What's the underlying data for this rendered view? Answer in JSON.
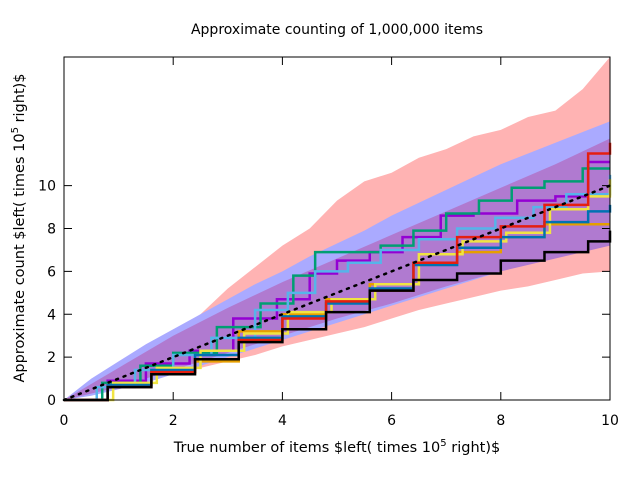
{
  "chart_data": {
    "type": "line",
    "title": "Approximate counting of 1,000,000 items",
    "xlabel_main": "True number of items $left( times 10",
    "xlabel_sup": "5",
    "xlabel_tail": " right)$",
    "ylabel_main": "Approximate count $left( times 10",
    "ylabel_sup": "5",
    "ylabel_tail": " right)$",
    "xlim": [
      0,
      10
    ],
    "ylim": [
      0,
      16
    ],
    "xticks": [
      "0",
      "2",
      "4",
      "6",
      "8",
      "10"
    ],
    "xtick_values": [
      0,
      2,
      4,
      6,
      8,
      10
    ],
    "yticks": [
      "0",
      "2",
      "4",
      "6",
      "8",
      "10"
    ],
    "ytick_values": [
      0,
      2,
      4,
      6,
      8,
      10
    ],
    "grid": false,
    "bands": [
      {
        "color": "#ffb3b3",
        "x": [
          0,
          0.5,
          1,
          1.5,
          2,
          2.5,
          3,
          3.5,
          4,
          4.5,
          5,
          5.5,
          6,
          6.5,
          7,
          7.5,
          8,
          8.5,
          9,
          9.5,
          10
        ],
        "lower": [
          0,
          0.3,
          0.6,
          0.9,
          1.2,
          1.5,
          1.8,
          2.1,
          2.5,
          2.8,
          3.1,
          3.4,
          3.8,
          4.2,
          4.5,
          4.8,
          5.1,
          5.3,
          5.6,
          5.9,
          6.0
        ],
        "upper": [
          0,
          0.9,
          1.7,
          2.4,
          3.2,
          4.0,
          5.2,
          6.2,
          7.2,
          8.0,
          9.3,
          10.2,
          10.6,
          11.3,
          11.7,
          12.3,
          12.6,
          13.2,
          13.5,
          14.5,
          16.0
        ]
      },
      {
        "color": "#aaaaff",
        "x": [
          0,
          0.5,
          1,
          1.5,
          2,
          2.5,
          3,
          3.5,
          4,
          4.5,
          5,
          5.5,
          6,
          6.5,
          7,
          7.5,
          8,
          8.5,
          9,
          9.5,
          10
        ],
        "lower": [
          0,
          0.2,
          0.5,
          0.8,
          1.2,
          1.6,
          2.0,
          2.4,
          2.8,
          3.2,
          3.6,
          4.0,
          4.4,
          4.8,
          5.2,
          5.6,
          6.0,
          6.4,
          6.8,
          7.2,
          7.6
        ],
        "upper": [
          0,
          1.0,
          1.8,
          2.6,
          3.3,
          4.0,
          4.7,
          5.4,
          6.0,
          6.7,
          7.3,
          7.9,
          8.6,
          9.2,
          9.8,
          10.4,
          11.0,
          11.5,
          12.0,
          12.5,
          13.0
        ]
      },
      {
        "color": "#b07ad0",
        "x": [
          0,
          1,
          2,
          3,
          4,
          5,
          6,
          7,
          8,
          9,
          10
        ],
        "lower": [
          0,
          0.6,
          1.4,
          2.2,
          3.0,
          3.8,
          4.5,
          5.3,
          6.0,
          6.6,
          7.2
        ],
        "upper": [
          0,
          1.5,
          3.0,
          4.3,
          5.5,
          6.6,
          7.7,
          8.8,
          9.9,
          11.0,
          12.2
        ]
      }
    ],
    "series": [
      {
        "color": "#9400d3",
        "x": [
          0,
          0.8,
          1.5,
          2.3,
          3.1,
          3.9,
          4.5,
          5.0,
          5.6,
          6.2,
          6.9,
          7.5,
          8.3,
          9.0,
          9.6,
          10
        ],
        "y": [
          0,
          0.9,
          1.7,
          2.3,
          3.8,
          4.7,
          5.9,
          6.5,
          6.9,
          7.6,
          8.6,
          8.7,
          9.3,
          9.5,
          11.1,
          11.1
        ]
      },
      {
        "color": "#009e73",
        "x": [
          0,
          0.7,
          1.4,
          2.0,
          2.8,
          3.6,
          4.2,
          4.6,
          5.2,
          5.8,
          6.4,
          7.0,
          7.6,
          8.2,
          8.8,
          9.5,
          10
        ],
        "y": [
          0,
          0.8,
          1.6,
          2.2,
          3.4,
          4.5,
          5.8,
          6.9,
          6.9,
          7.2,
          7.9,
          8.7,
          9.3,
          9.9,
          10.2,
          10.8,
          10.8
        ]
      },
      {
        "color": "#56b4e9",
        "x": [
          0,
          0.6,
          1.3,
          2.0,
          2.7,
          3.5,
          4.1,
          4.6,
          5.2,
          5.8,
          6.5,
          7.2,
          7.9,
          8.6,
          9.2,
          10
        ],
        "y": [
          0,
          0.6,
          1.4,
          2.1,
          2.9,
          4.2,
          5.0,
          6.0,
          6.4,
          7.0,
          7.5,
          8.0,
          8.5,
          9.0,
          9.6,
          10.5
        ]
      },
      {
        "color": "#e69f00",
        "x": [
          0,
          0.8,
          1.6,
          2.4,
          3.2,
          4.0,
          4.8,
          5.6,
          6.4,
          7.2,
          8.0,
          8.8,
          9.6,
          10
        ],
        "y": [
          0,
          0.7,
          1.3,
          1.8,
          3.2,
          4.0,
          4.7,
          5.4,
          6.4,
          6.9,
          7.6,
          8.2,
          8.2,
          8.2
        ]
      },
      {
        "color": "#f0e442",
        "x": [
          0,
          0.9,
          1.7,
          2.5,
          3.3,
          4.1,
          4.9,
          5.7,
          6.5,
          7.3,
          8.1,
          8.9,
          9.6,
          10
        ],
        "y": [
          0,
          0.8,
          1.5,
          2.3,
          3.1,
          4.1,
          4.7,
          5.4,
          6.8,
          7.4,
          7.8,
          8.9,
          9.5,
          10.3
        ]
      },
      {
        "color": "#0072b2",
        "x": [
          0,
          0.8,
          1.6,
          2.4,
          3.2,
          4.0,
          4.8,
          5.6,
          6.4,
          7.2,
          8.0,
          8.8,
          9.6,
          10
        ],
        "y": [
          0,
          0.7,
          1.4,
          2.1,
          2.9,
          3.9,
          4.5,
          5.2,
          6.3,
          7.1,
          7.6,
          8.3,
          8.8,
          9.1
        ]
      },
      {
        "color": "#e51e10",
        "x": [
          0,
          0.8,
          1.6,
          2.4,
          3.2,
          4.0,
          4.8,
          5.6,
          6.4,
          7.2,
          8.0,
          8.8,
          9.6,
          10
        ],
        "y": [
          0,
          0.6,
          1.3,
          1.9,
          2.8,
          3.8,
          4.6,
          5.1,
          6.4,
          7.6,
          8.1,
          9.1,
          11.5,
          12.0
        ]
      },
      {
        "color": "#000000",
        "x": [
          0,
          0.8,
          1.6,
          2.4,
          3.2,
          4.0,
          4.8,
          5.6,
          6.4,
          7.2,
          8.0,
          8.8,
          9.6,
          10
        ],
        "y": [
          0,
          0.6,
          1.2,
          1.9,
          2.7,
          3.3,
          4.1,
          5.1,
          5.6,
          5.9,
          6.5,
          6.9,
          7.4,
          7.9
        ]
      }
    ],
    "reference_line": {
      "color": "#000000",
      "x": [
        0,
        10
      ],
      "y": [
        0,
        10
      ]
    }
  }
}
